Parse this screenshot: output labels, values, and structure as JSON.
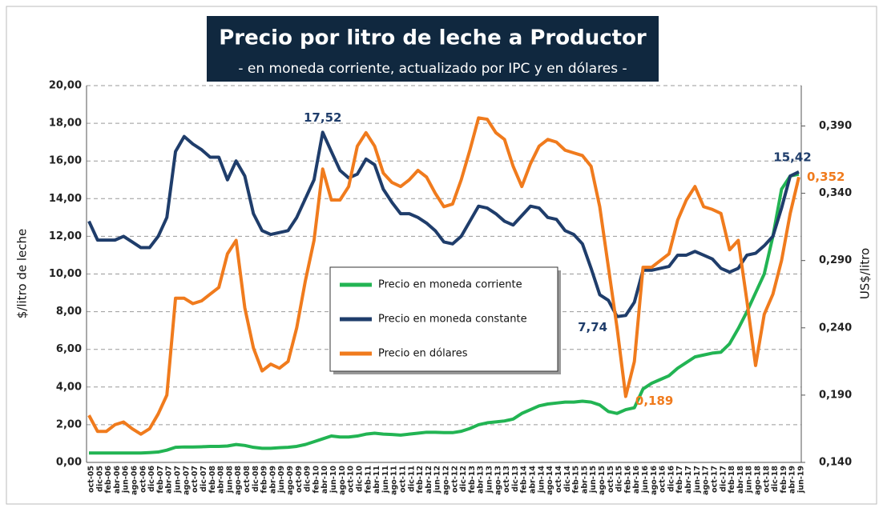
{
  "chart_data": {
    "type": "line",
    "title": "Precio por litro de leche a Productor",
    "subtitle": "- en moneda corriente, actualizado por IPC y en dólares -",
    "y_label": "$/litro de leche",
    "y2_label": "US$/litro",
    "legend": "center",
    "grid": true,
    "categories": [
      "oct-05",
      "dic-05",
      "feb-06",
      "abr-06",
      "jun-06",
      "ago-06",
      "oct-06",
      "dic-06",
      "feb-07",
      "abr-07",
      "jun-07",
      "ago-07",
      "oct-07",
      "dic-07",
      "feb-08",
      "abr-08",
      "jun-08",
      "ago-08",
      "oct-08",
      "dic-08",
      "feb-09",
      "abr-09",
      "jun-09",
      "ago-09",
      "oct-09",
      "dic-09",
      "feb-10",
      "abr-10",
      "jun-10",
      "ago-10",
      "oct-10",
      "dic-10",
      "feb-11",
      "abr-11",
      "jun-11",
      "ago-11",
      "oct-11",
      "dic-11",
      "feb-12",
      "abr-12",
      "jun-12",
      "ago-12",
      "oct-12",
      "dic-12",
      "feb-13",
      "abr-13",
      "jun-13",
      "ago-13",
      "oct-13",
      "dic-13",
      "feb-14",
      "abr-14",
      "jun-14",
      "ago-14",
      "oct-14",
      "dic-14",
      "feb-15",
      "abr-15",
      "jun-15",
      "ago-15",
      "oct-15",
      "dic-15",
      "feb-16",
      "abr-16",
      "jun-16",
      "ago-16",
      "oct-16",
      "dic-16",
      "feb-17",
      "abr-17",
      "jun-17",
      "ago-17",
      "oct-17",
      "dic-17",
      "feb-18",
      "abr-18",
      "jun-18",
      "ago-18",
      "oct-18",
      "dic-18",
      "feb-19",
      "abr-19",
      "jun-19"
    ],
    "ylim": [
      0,
      20
    ],
    "yticks": [
      {
        "value": 0,
        "label": "0,00"
      },
      {
        "value": 2,
        "label": "2,00"
      },
      {
        "value": 4,
        "label": "4,00"
      },
      {
        "value": 6,
        "label": "6,00"
      },
      {
        "value": 8,
        "label": "8,00"
      },
      {
        "value": 10,
        "label": "10,00"
      },
      {
        "value": 12,
        "label": "12,00"
      },
      {
        "value": 14,
        "label": "14,00"
      },
      {
        "value": 16,
        "label": "16,00"
      },
      {
        "value": 18,
        "label": "18,00"
      },
      {
        "value": 20,
        "label": "20,00"
      }
    ],
    "y2lim": [
      0.14,
      0.42
    ],
    "y2ticks": [
      {
        "value": 0.14,
        "label": "0,140"
      },
      {
        "value": 0.19,
        "label": "0,190"
      },
      {
        "value": 0.24,
        "label": "0,240"
      },
      {
        "value": 0.29,
        "label": "0,290"
      },
      {
        "value": 0.34,
        "label": "0,340"
      },
      {
        "value": 0.39,
        "label": "0,390"
      }
    ],
    "series": [
      {
        "name": "Precio en moneda corriente",
        "color": "#22b453",
        "values": [
          0.5,
          0.5,
          0.5,
          0.5,
          0.5,
          0.5,
          0.5,
          0.52,
          0.55,
          0.65,
          0.8,
          0.82,
          0.82,
          0.83,
          0.85,
          0.85,
          0.87,
          0.95,
          0.9,
          0.8,
          0.75,
          0.75,
          0.78,
          0.8,
          0.85,
          0.95,
          1.1,
          1.25,
          1.4,
          1.35,
          1.35,
          1.4,
          1.5,
          1.55,
          1.5,
          1.48,
          1.45,
          1.5,
          1.55,
          1.6,
          1.6,
          1.58,
          1.58,
          1.65,
          1.8,
          2.0,
          2.1,
          2.15,
          2.2,
          2.3,
          2.6,
          2.8,
          3.0,
          3.1,
          3.15,
          3.2,
          3.2,
          3.25,
          3.2,
          3.05,
          2.7,
          2.6,
          2.8,
          2.9,
          3.9,
          4.2,
          4.4,
          4.6,
          5.0,
          5.3,
          5.6,
          5.7,
          5.8,
          5.85,
          6.3,
          7.1,
          8.0,
          9.0,
          10.0,
          12.0,
          14.5,
          15.2,
          15.3
        ],
        "value_labels": [
          null,
          null,
          null,
          null,
          null,
          null,
          null,
          null,
          null,
          null,
          null,
          null,
          null,
          null,
          null,
          null,
          null,
          null,
          null,
          null,
          null,
          null,
          null,
          null,
          null,
          null,
          null,
          null,
          null,
          null,
          null,
          null,
          null,
          null,
          null,
          null,
          null,
          null,
          null,
          null,
          null,
          null,
          null,
          null,
          null,
          null,
          null,
          null,
          null,
          null,
          null,
          null,
          null,
          null,
          null,
          null,
          null,
          null,
          null,
          null,
          null,
          null,
          null,
          null,
          null,
          null,
          null,
          null,
          null,
          null,
          null,
          null,
          null,
          null,
          null,
          null,
          null,
          null,
          null,
          null,
          null,
          null,
          null
        ]
      },
      {
        "name": "Precio en moneda constante",
        "color": "#1f3d6b",
        "values": [
          12.8,
          11.8,
          11.8,
          11.8,
          12.0,
          11.7,
          11.4,
          11.4,
          12.0,
          13.0,
          16.5,
          17.3,
          16.9,
          16.6,
          16.2,
          16.2,
          15.0,
          16.0,
          15.2,
          13.2,
          12.3,
          12.1,
          12.2,
          12.3,
          13.0,
          14.0,
          15.0,
          17.52,
          16.5,
          15.5,
          15.1,
          15.3,
          16.1,
          15.8,
          14.5,
          13.8,
          13.2,
          13.2,
          13.0,
          12.7,
          12.3,
          11.7,
          11.6,
          12.0,
          12.8,
          13.6,
          13.5,
          13.2,
          12.8,
          12.6,
          13.1,
          13.6,
          13.5,
          13.0,
          12.9,
          12.3,
          12.1,
          11.6,
          10.3,
          8.9,
          8.6,
          7.74,
          7.8,
          8.5,
          10.2,
          10.2,
          10.3,
          10.4,
          11.0,
          11.0,
          11.2,
          11.0,
          10.8,
          10.3,
          10.1,
          10.3,
          11.0,
          11.1,
          11.5,
          12.0,
          13.5,
          15.2,
          15.42
        ],
        "value_labels": [
          null,
          null,
          null,
          null,
          null,
          null,
          null,
          null,
          null,
          null,
          null,
          null,
          null,
          null,
          null,
          null,
          null,
          null,
          null,
          null,
          null,
          null,
          null,
          null,
          null,
          null,
          null,
          "17,52",
          null,
          null,
          null,
          null,
          null,
          null,
          null,
          null,
          null,
          null,
          null,
          null,
          null,
          null,
          null,
          null,
          null,
          null,
          null,
          null,
          null,
          null,
          null,
          null,
          null,
          null,
          null,
          null,
          null,
          null,
          null,
          null,
          null,
          "7,74",
          null,
          null,
          null,
          null,
          null,
          null,
          null,
          null,
          null,
          null,
          null,
          null,
          null,
          null,
          null,
          null,
          null,
          null,
          null,
          null,
          "15,42"
        ]
      },
      {
        "name": "Precio en dólares",
        "color": "#f07b1d",
        "axis": "y2",
        "values": [
          0.175,
          0.163,
          0.163,
          0.168,
          0.17,
          0.165,
          0.161,
          0.165,
          0.176,
          0.19,
          0.262,
          0.262,
          0.258,
          0.26,
          0.265,
          0.27,
          0.295,
          0.305,
          0.255,
          0.225,
          0.208,
          0.213,
          0.21,
          0.215,
          0.24,
          0.275,
          0.305,
          0.358,
          0.335,
          0.335,
          0.345,
          0.375,
          0.385,
          0.375,
          0.355,
          0.348,
          0.345,
          0.35,
          0.357,
          0.352,
          0.34,
          0.33,
          0.332,
          0.35,
          0.372,
          0.396,
          0.395,
          0.385,
          0.38,
          0.36,
          0.345,
          0.362,
          0.375,
          0.38,
          0.378,
          0.372,
          0.37,
          0.368,
          0.36,
          0.33,
          0.285,
          0.24,
          0.189,
          0.215,
          0.285,
          0.285,
          0.29,
          0.295,
          0.32,
          0.335,
          0.345,
          0.33,
          0.328,
          0.325,
          0.298,
          0.305,
          0.26,
          0.212,
          0.25,
          0.265,
          0.29,
          0.325,
          0.352
        ],
        "value_labels": [
          null,
          null,
          null,
          null,
          null,
          null,
          null,
          null,
          null,
          null,
          null,
          null,
          null,
          null,
          null,
          null,
          null,
          null,
          null,
          null,
          null,
          null,
          null,
          null,
          null,
          null,
          null,
          null,
          null,
          null,
          null,
          null,
          null,
          null,
          null,
          null,
          null,
          null,
          null,
          null,
          null,
          null,
          null,
          null,
          null,
          null,
          null,
          null,
          null,
          null,
          null,
          null,
          null,
          null,
          null,
          null,
          null,
          null,
          null,
          null,
          null,
          null,
          "0,189",
          null,
          null,
          null,
          null,
          null,
          null,
          null,
          null,
          null,
          null,
          null,
          null,
          null,
          null,
          null,
          null,
          null,
          null,
          null,
          "0,352"
        ]
      }
    ]
  }
}
